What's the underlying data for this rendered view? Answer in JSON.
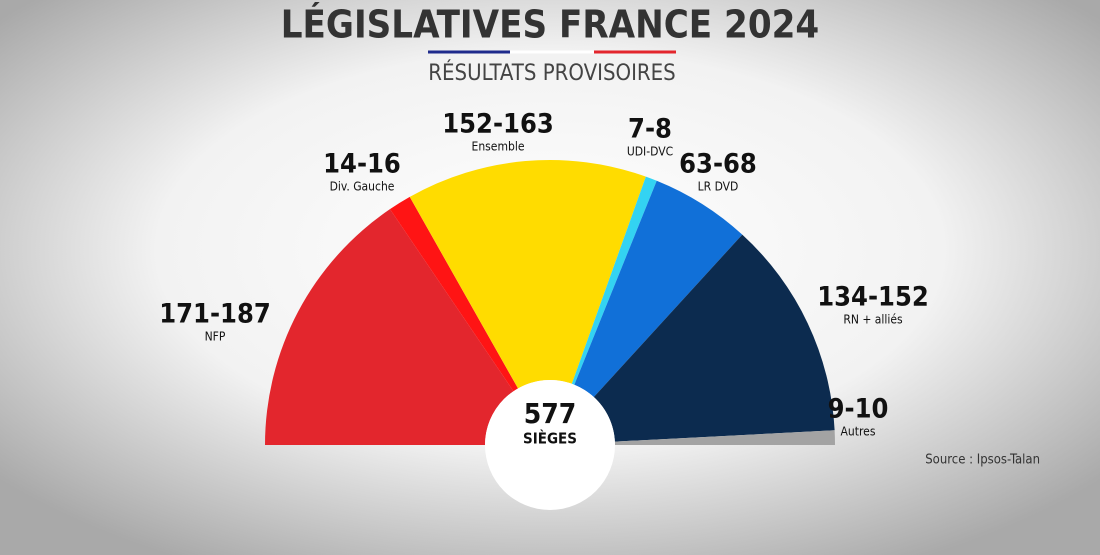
{
  "chart_data": {
    "type": "hemicycle",
    "title": "LÉGISLATIVES FRANCE 2024",
    "subtitle": "RÉSULTATS PROVISOIRES",
    "total": 577,
    "total_label": "SIÈGES",
    "source": "Source : Ipsos-Talan",
    "series": [
      {
        "name": "NFP",
        "range_label": "171-187",
        "low": 171,
        "high": 187,
        "color": "#e3262d"
      },
      {
        "name": "Div. Gauche",
        "range_label": "14-16",
        "low": 14,
        "high": 16,
        "color": "#ff1414"
      },
      {
        "name": "Ensemble",
        "range_label": "152-163",
        "low": 152,
        "high": 163,
        "color": "#ffdc00"
      },
      {
        "name": "UDI-DVC",
        "range_label": "7-8",
        "low": 7,
        "high": 8,
        "color": "#33d3f2"
      },
      {
        "name": "LR DVD",
        "range_label": "63-68",
        "low": 63,
        "high": 68,
        "color": "#1170d8"
      },
      {
        "name": "RN + alliés",
        "range_label": "134-152",
        "low": 134,
        "high": 152,
        "color": "#0c2b4f"
      },
      {
        "name": "Autres",
        "range_label": "9-10",
        "low": 9,
        "high": 10,
        "color": "#a3a3a3"
      }
    ]
  }
}
